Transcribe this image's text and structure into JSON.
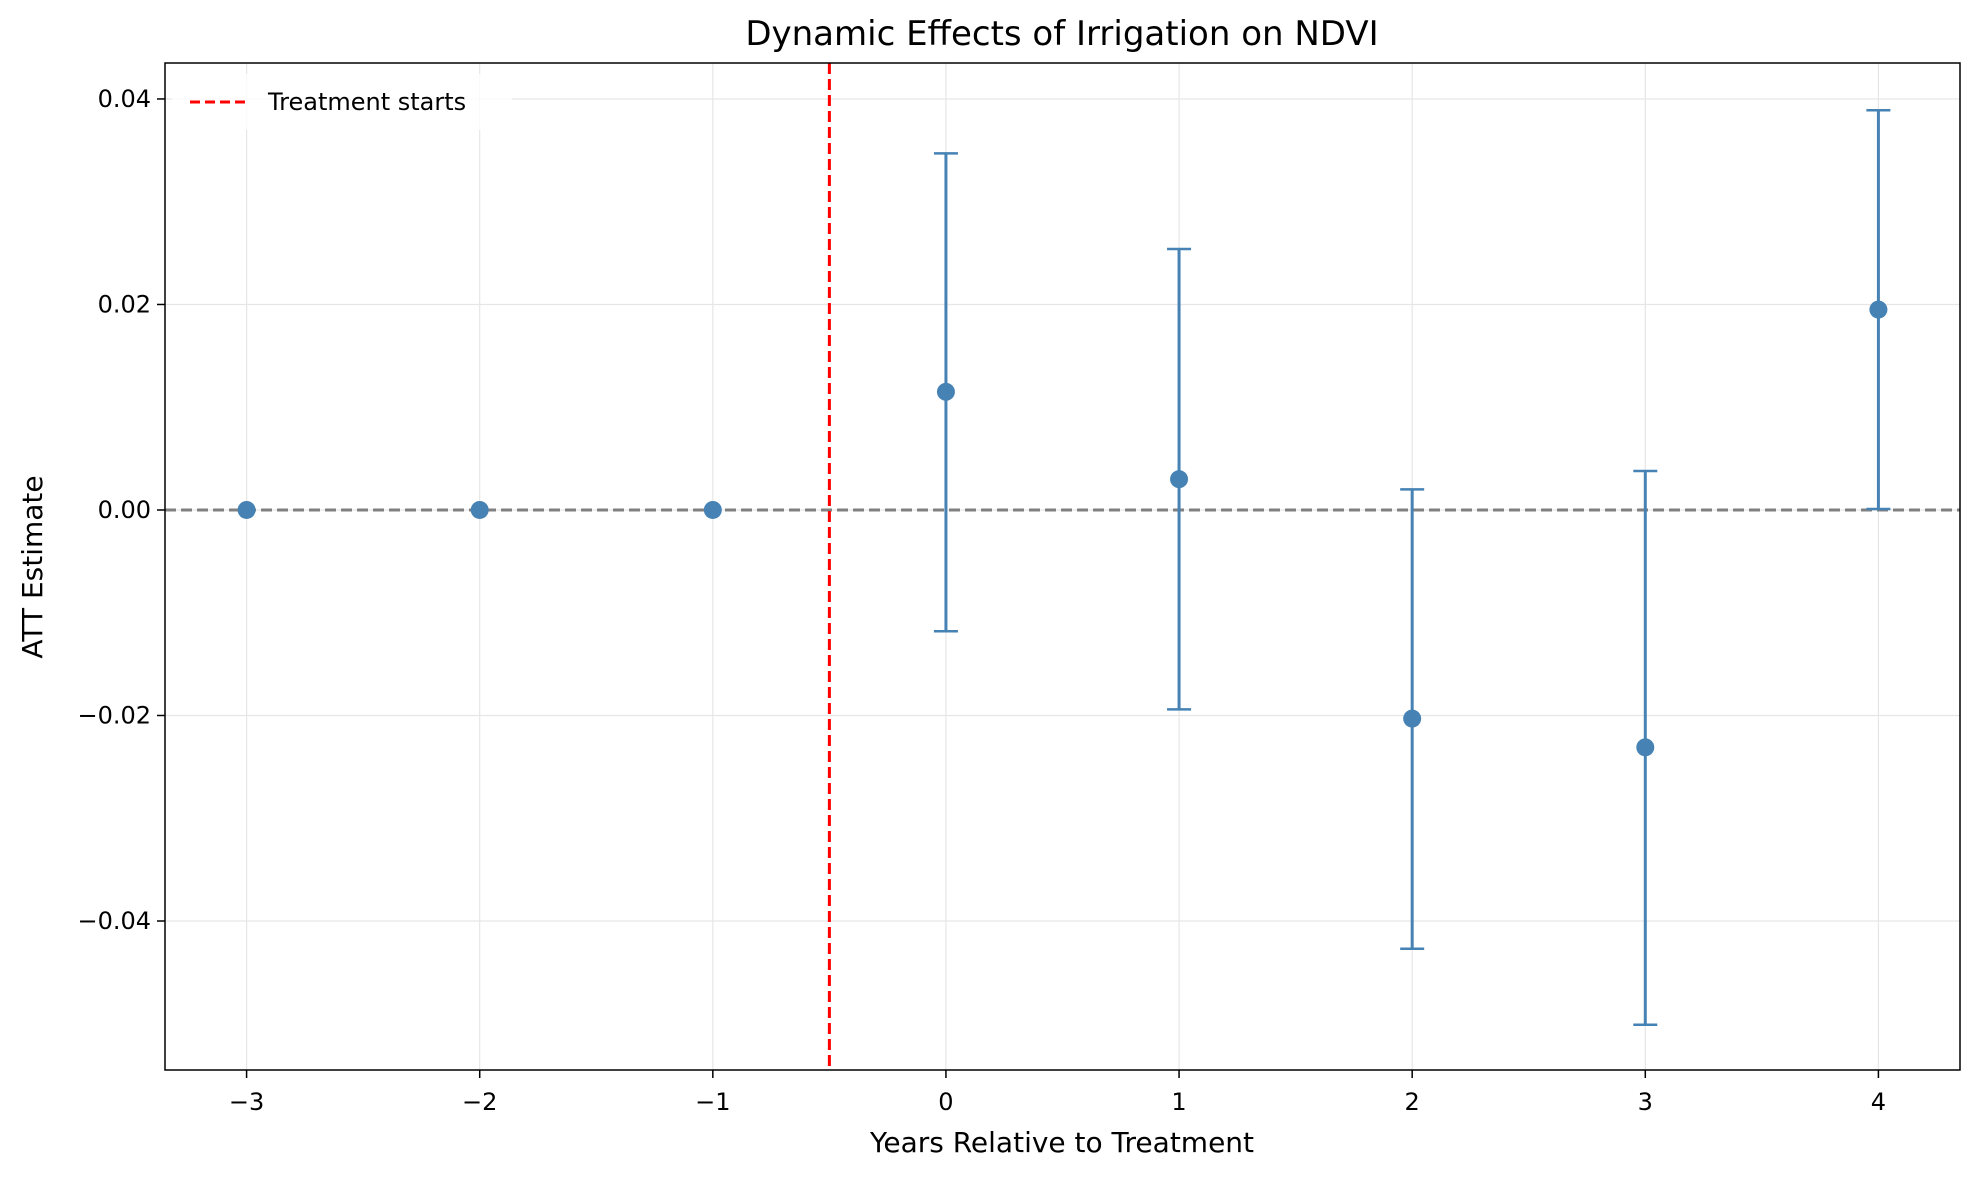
{
  "chart_data": {
    "type": "scatter",
    "title": "Dynamic Effects of Irrigation on NDVI",
    "xlabel": "Years Relative to Treatment",
    "ylabel": "ATT Estimate",
    "xlim": [
      -3.35,
      4.35
    ],
    "ylim": [
      -0.0545,
      0.0435
    ],
    "x_ticks": [
      -3,
      -2,
      -1,
      0,
      1,
      2,
      3,
      4
    ],
    "x_tick_labels": [
      "−3",
      "−2",
      "−1",
      "0",
      "1",
      "2",
      "3",
      "4"
    ],
    "y_ticks": [
      -0.04,
      -0.02,
      0.0,
      0.02,
      0.04
    ],
    "y_tick_labels": [
      "−0.04",
      "−0.02",
      "0.00",
      "0.02",
      "0.04"
    ],
    "grid": true,
    "legend": {
      "position": "top-left",
      "entries": [
        "Treatment starts"
      ]
    },
    "points": [
      {
        "x": -3,
        "y": 0.0
      },
      {
        "x": -2,
        "y": 0.0
      },
      {
        "x": -1,
        "y": 0.0
      },
      {
        "x": 0,
        "y": 0.0115,
        "ci_low": -0.0118,
        "ci_high": 0.0347
      },
      {
        "x": 1,
        "y": 0.003,
        "ci_low": -0.0194,
        "ci_high": 0.0254
      },
      {
        "x": 2,
        "y": -0.0203,
        "ci_low": -0.0427,
        "ci_high": 0.002
      },
      {
        "x": 3,
        "y": -0.0231,
        "ci_low": -0.0501,
        "ci_high": 0.0038
      },
      {
        "x": 4,
        "y": 0.0195,
        "ci_low": 0.0001,
        "ci_high": 0.0389
      }
    ],
    "reference_lines": [
      {
        "orientation": "horizontal",
        "value": 0.0,
        "style": "dashed",
        "color": "#808080"
      },
      {
        "orientation": "vertical",
        "value": -0.5,
        "style": "dashed",
        "color": "#ff0000",
        "label": "Treatment starts"
      }
    ],
    "point_color": "#4682b4"
  }
}
